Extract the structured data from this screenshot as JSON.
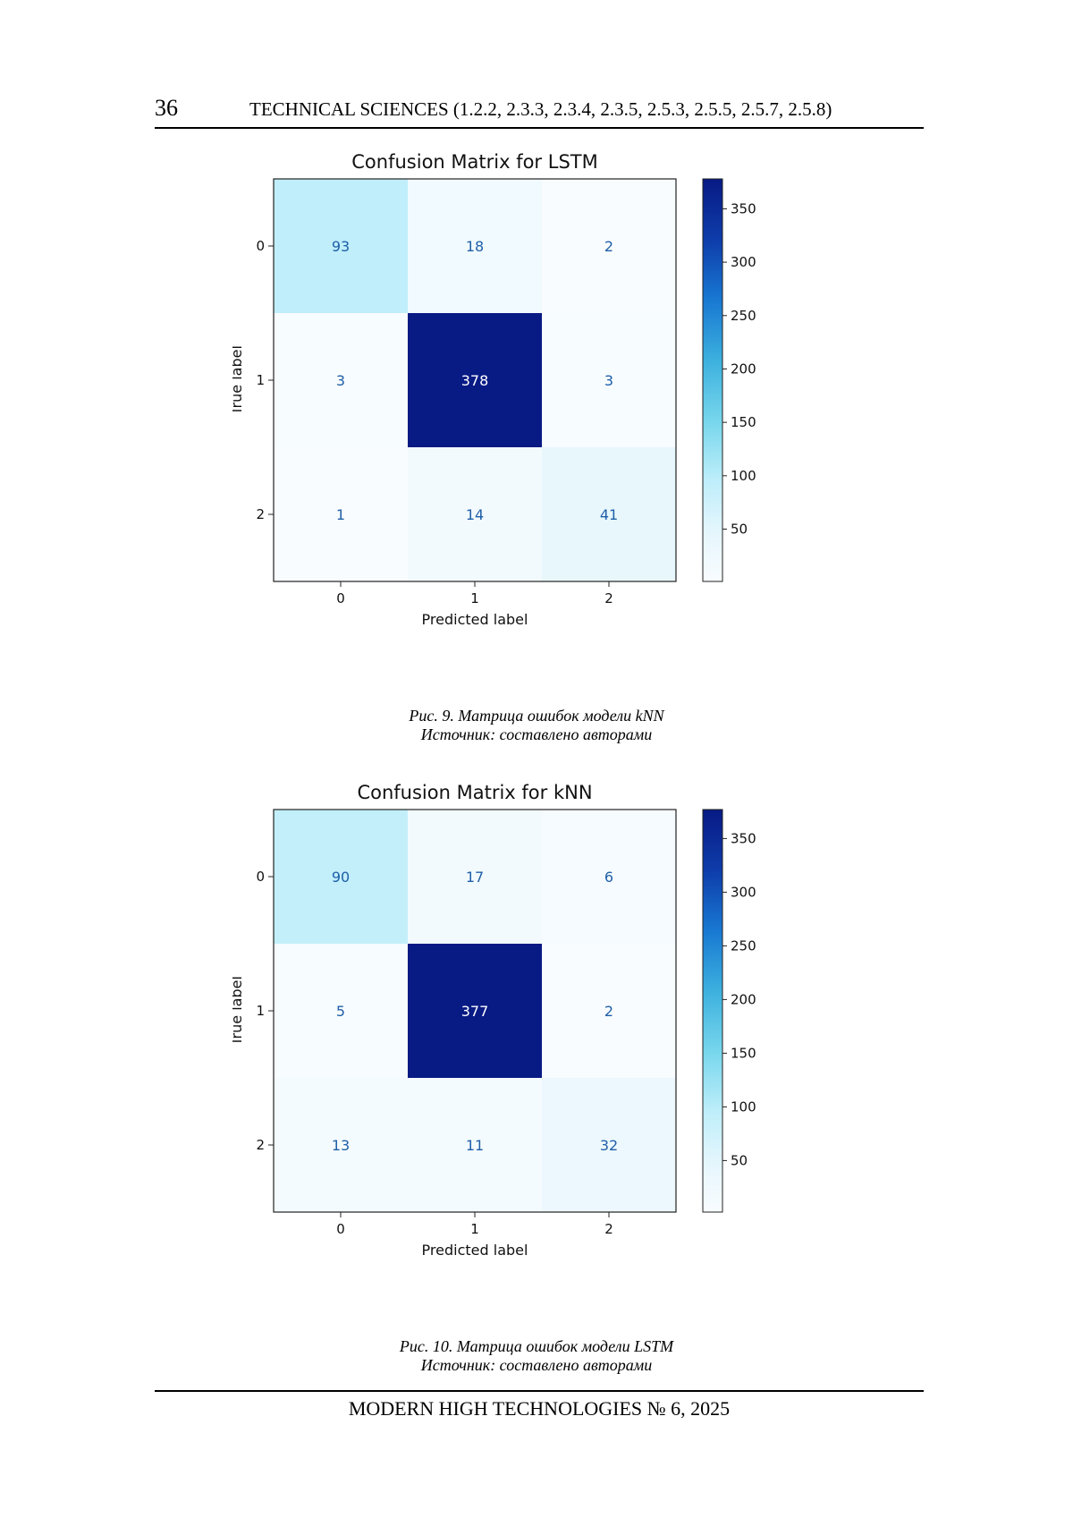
{
  "header": {
    "page_number": "36",
    "journal_section": "TECHNICAL SCIENCES (1.2.2, 2.3.3, 2.3.4, 2.3.5, 2.5.3, 2.5.5, 2.5.7, 2.5.8)"
  },
  "figures": [
    {
      "caption_line1": "Рис. 9. Матрица ошибок модели kNN",
      "caption_line2": "Источник: составлено авторами"
    },
    {
      "caption_line1": "Рис. 10. Матрица ошибок модели LSTM",
      "caption_line2": "Источник: составлено авторами"
    }
  ],
  "footer": {
    "journal": "MODERN HIGH TECHNOLOGIES   № 6, 2025"
  },
  "chart_data": [
    {
      "type": "heatmap",
      "title": "Confusion Matrix for LSTM",
      "xlabel": "Predicted label",
      "ylabel": "True label",
      "x_ticks": [
        "0",
        "1",
        "2"
      ],
      "y_ticks": [
        "0",
        "1",
        "2"
      ],
      "matrix": [
        [
          93,
          18,
          2
        ],
        [
          3,
          378,
          3
        ],
        [
          1,
          14,
          41
        ]
      ],
      "colorbar": {
        "min": 1,
        "max": 378,
        "ticks": [
          50,
          100,
          150,
          200,
          250,
          300,
          350
        ],
        "colormap": "blues"
      },
      "text_dark": "#1f5fa8",
      "text_light": "#ffffff"
    },
    {
      "type": "heatmap",
      "title": "Confusion Matrix for kNN",
      "xlabel": "Predicted label",
      "ylabel": "True label",
      "x_ticks": [
        "0",
        "1",
        "2"
      ],
      "y_ticks": [
        "0",
        "1",
        "2"
      ],
      "matrix": [
        [
          90,
          17,
          6
        ],
        [
          5,
          377,
          2
        ],
        [
          13,
          11,
          32
        ]
      ],
      "colorbar": {
        "min": 2,
        "max": 377,
        "ticks": [
          50,
          100,
          150,
          200,
          250,
          300,
          350
        ],
        "colormap": "blues"
      },
      "text_dark": "#1f5fa8",
      "text_light": "#ffffff"
    }
  ]
}
